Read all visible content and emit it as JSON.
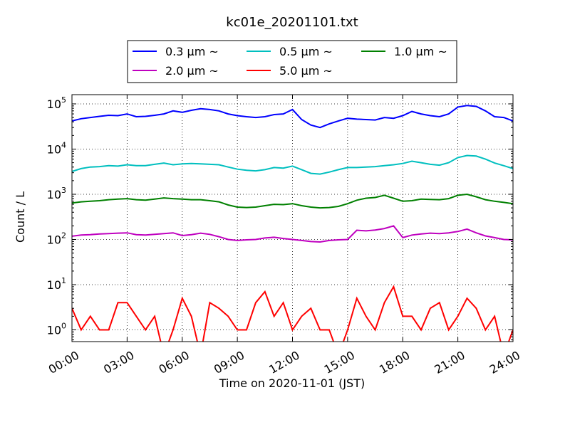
{
  "chart_data": {
    "type": "line",
    "title": "kc01e_20201101.txt",
    "xlabel": "Time on 2020-11-01 (JST)",
    "ylabel": "Count / L",
    "x_range_hours": [
      0,
      24
    ],
    "x_ticks": [
      "00:00",
      "03:00",
      "06:00",
      "09:00",
      "12:00",
      "15:00",
      "18:00",
      "21:00",
      "24:00"
    ],
    "y_scale": "log",
    "y_range": [
      0.55,
      160000
    ],
    "y_ticks": [
      {
        "value": 1,
        "mant": "10",
        "exp": "0"
      },
      {
        "value": 10,
        "mant": "10",
        "exp": "1"
      },
      {
        "value": 100,
        "mant": "10",
        "exp": "2"
      },
      {
        "value": 1000,
        "mant": "10",
        "exp": "3"
      },
      {
        "value": 10000,
        "mant": "10",
        "exp": "4"
      },
      {
        "value": 100000,
        "mant": "10",
        "exp": "5"
      }
    ],
    "grid": true,
    "legend_position": "top-center above plot",
    "series": [
      {
        "name": "0.3 μm ~",
        "color": "#0000ff",
        "x": [
          0,
          0.5,
          1,
          1.5,
          2,
          2.5,
          3,
          3.5,
          4,
          4.5,
          5,
          5.5,
          6,
          6.5,
          7,
          7.5,
          8,
          8.5,
          9,
          9.5,
          10,
          10.5,
          11,
          11.5,
          12,
          12.5,
          13,
          13.5,
          14,
          14.5,
          15,
          15.5,
          16,
          16.5,
          17,
          17.5,
          18,
          18.5,
          19,
          19.5,
          20,
          20.5,
          21,
          21.5,
          22,
          22.5,
          23,
          23.5,
          24
        ],
        "y": [
          42000,
          47000,
          50000,
          53000,
          56000,
          55000,
          60000,
          52000,
          53000,
          56000,
          60000,
          70000,
          65000,
          72000,
          78000,
          75000,
          70000,
          60000,
          55000,
          52000,
          50000,
          52000,
          58000,
          60000,
          75000,
          45000,
          34000,
          30000,
          36000,
          42000,
          48000,
          46000,
          45000,
          44000,
          50000,
          48000,
          55000,
          68000,
          60000,
          55000,
          52000,
          60000,
          85000,
          92000,
          88000,
          70000,
          52000,
          50000,
          42000
        ]
      },
      {
        "name": "0.5 μm ~",
        "color": "#00bfbf",
        "x": [
          0,
          0.5,
          1,
          1.5,
          2,
          2.5,
          3,
          3.5,
          4,
          4.5,
          5,
          5.5,
          6,
          6.5,
          7,
          7.5,
          8,
          8.5,
          9,
          9.5,
          10,
          10.5,
          11,
          11.5,
          12,
          12.5,
          13,
          13.5,
          14,
          14.5,
          15,
          15.5,
          16,
          16.5,
          17,
          17.5,
          18,
          18.5,
          19,
          19.5,
          20,
          20.5,
          21,
          21.5,
          22,
          22.5,
          23,
          23.5,
          24
        ],
        "y": [
          3200,
          3700,
          4000,
          4100,
          4300,
          4200,
          4500,
          4300,
          4300,
          4600,
          4900,
          4500,
          4700,
          4800,
          4700,
          4600,
          4500,
          4000,
          3600,
          3400,
          3300,
          3500,
          3900,
          3800,
          4200,
          3500,
          2900,
          2800,
          3100,
          3500,
          3900,
          3900,
          4000,
          4100,
          4300,
          4500,
          4800,
          5400,
          5000,
          4600,
          4400,
          5000,
          6500,
          7200,
          7000,
          6000,
          4900,
          4300,
          3700
        ]
      },
      {
        "name": "1.0 μm ~",
        "color": "#008000",
        "x": [
          0,
          0.5,
          1,
          1.5,
          2,
          2.5,
          3,
          3.5,
          4,
          4.5,
          5,
          5.5,
          6,
          6.5,
          7,
          7.5,
          8,
          8.5,
          9,
          9.5,
          10,
          10.5,
          11,
          11.5,
          12,
          12.5,
          13,
          13.5,
          14,
          14.5,
          15,
          15.5,
          16,
          16.5,
          17,
          17.5,
          18,
          18.5,
          19,
          19.5,
          20,
          20.5,
          21,
          21.5,
          22,
          22.5,
          23,
          23.5,
          24
        ],
        "y": [
          640,
          680,
          700,
          720,
          760,
          780,
          800,
          760,
          740,
          780,
          830,
          800,
          780,
          760,
          760,
          720,
          680,
          580,
          520,
          510,
          520,
          560,
          600,
          590,
          620,
          560,
          520,
          500,
          510,
          540,
          620,
          740,
          820,
          850,
          950,
          820,
          700,
          720,
          780,
          770,
          760,
          800,
          950,
          1000,
          880,
          760,
          700,
          660,
          620
        ]
      },
      {
        "name": "2.0 μm ~",
        "color": "#bf00bf",
        "x": [
          0,
          0.5,
          1,
          1.5,
          2,
          2.5,
          3,
          3.5,
          4,
          4.5,
          5,
          5.5,
          6,
          6.5,
          7,
          7.5,
          8,
          8.5,
          9,
          9.5,
          10,
          10.5,
          11,
          11.5,
          12,
          12.5,
          13,
          13.5,
          14,
          14.5,
          15,
          15.5,
          16,
          16.5,
          17,
          17.5,
          18,
          18.5,
          19,
          19.5,
          20,
          20.5,
          21,
          21.5,
          22,
          22.5,
          23,
          23.5,
          24
        ],
        "y": [
          118,
          125,
          128,
          132,
          135,
          138,
          140,
          128,
          125,
          130,
          135,
          140,
          122,
          128,
          138,
          130,
          115,
          100,
          95,
          98,
          100,
          108,
          112,
          105,
          100,
          95,
          90,
          88,
          95,
          98,
          100,
          160,
          155,
          162,
          175,
          200,
          110,
          125,
          132,
          138,
          135,
          140,
          150,
          170,
          140,
          120,
          110,
          100,
          98
        ]
      },
      {
        "name": "5.0 μm ~",
        "color": "#ff0000",
        "x": [
          0,
          0.5,
          1,
          1.5,
          2,
          2.5,
          3,
          3.5,
          4,
          4.5,
          5,
          5.5,
          6,
          6.5,
          7,
          7.5,
          8,
          8.5,
          9,
          9.5,
          10,
          10.5,
          11,
          11.5,
          12,
          12.5,
          13,
          13.5,
          14,
          14.5,
          15,
          15.5,
          16,
          16.5,
          17,
          17.5,
          18,
          18.5,
          19,
          19.5,
          20,
          20.5,
          21,
          21.5,
          22,
          22.5,
          23,
          23.5,
          24
        ],
        "y": [
          3,
          1,
          2,
          1,
          1,
          4,
          4,
          2,
          1,
          2,
          0,
          1,
          5,
          2,
          0,
          4,
          3,
          2,
          1,
          1,
          4,
          7,
          2,
          4,
          1,
          2,
          3,
          1,
          1,
          0,
          1,
          5,
          2,
          1,
          4,
          9,
          2,
          2,
          1,
          3,
          4,
          1,
          2,
          5,
          3,
          1,
          2,
          0,
          1
        ]
      }
    ]
  }
}
